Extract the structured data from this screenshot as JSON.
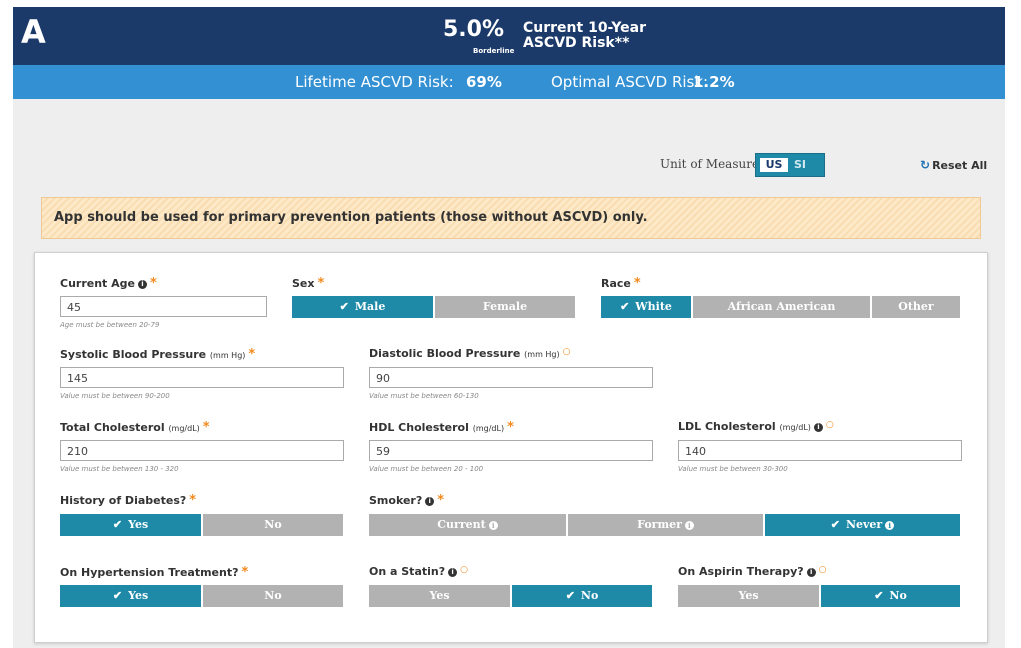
{
  "header": {
    "panel_letter": "A",
    "risk_percent": "5.0%",
    "risk_category": "Borderline",
    "risk_title_line1": "Current 10-Year",
    "risk_title_line2": "ASCVD Risk**",
    "lifetime_label": "Lifetime ASCVD Risk:",
    "lifetime_value": "69%",
    "optimal_label": "Optimal ASCVD Risk:",
    "optimal_value": "1.2%"
  },
  "units": {
    "label": "Unit of Measure",
    "us": "US",
    "si": "SI",
    "selected": "US"
  },
  "reset_label": "Reset All",
  "warning": "App should be used for primary prevention patients (those without ASCVD) only.",
  "form": {
    "age": {
      "label": "Current Age",
      "value": "45",
      "hint": "Age must be between 20-79"
    },
    "sex": {
      "label": "Sex",
      "options": [
        "Male",
        "Female"
      ],
      "selected": "Male"
    },
    "race": {
      "label": "Race",
      "options": [
        "White",
        "African American",
        "Other"
      ],
      "selected": "White"
    },
    "sbp": {
      "label": "Systolic Blood Pressure",
      "unit": "(mm Hg)",
      "value": "145",
      "hint": "Value must be between 90-200"
    },
    "dbp": {
      "label": "Diastolic Blood Pressure",
      "unit": "(mm Hg)",
      "value": "90",
      "hint": "Value must be between 60-130"
    },
    "tc": {
      "label": "Total Cholesterol",
      "unit": "(mg/dL)",
      "value": "210",
      "hint": "Value must be between 130 - 320"
    },
    "hdl": {
      "label": "HDL Cholesterol",
      "unit": "(mg/dL)",
      "value": "59",
      "hint": "Value must be between 20 - 100"
    },
    "ldl": {
      "label": "LDL Cholesterol",
      "unit": "(mg/dL)",
      "value": "140",
      "hint": "Value must be between 30-300"
    },
    "diabetes": {
      "label": "History of Diabetes?",
      "options": [
        "Yes",
        "No"
      ],
      "selected": "Yes"
    },
    "smoker": {
      "label": "Smoker?",
      "options": [
        "Current",
        "Former",
        "Never"
      ],
      "selected": "Never"
    },
    "htn": {
      "label": "On Hypertension Treatment?",
      "options": [
        "Yes",
        "No"
      ],
      "selected": "Yes"
    },
    "statin": {
      "label": "On a Statin?",
      "options": [
        "Yes",
        "No"
      ],
      "selected": "No"
    },
    "aspirin": {
      "label": "On Aspirin Therapy?",
      "options": [
        "Yes",
        "No"
      ],
      "selected": "No"
    }
  },
  "colors": {
    "header_dark": "#1b3a6a",
    "header_blue": "#3390d2",
    "selected": "#1e8aa8",
    "unselected": "#b2b2b2",
    "required": "#f28a1e"
  }
}
